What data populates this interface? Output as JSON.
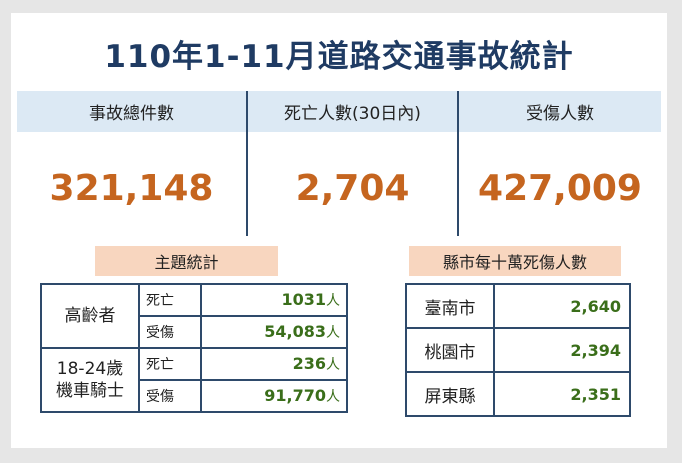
{
  "title": "110年1-11月道路交通事故統計",
  "summary": [
    {
      "label": "事故總件數",
      "value": "321,148"
    },
    {
      "label": "死亡人數(30日內)",
      "value": "2,704"
    },
    {
      "label": "受傷人數",
      "value": "427,009"
    }
  ],
  "theme_stats": {
    "heading": "主題統計",
    "groups": [
      {
        "name": "高齡者",
        "rows": [
          {
            "label": "死亡",
            "value": "1031",
            "unit": "人"
          },
          {
            "label": "受傷",
            "value": "54,083",
            "unit": "人"
          }
        ]
      },
      {
        "name_line1": "18-24歲",
        "name_line2": "機車騎士",
        "rows": [
          {
            "label": "死亡",
            "value": "236",
            "unit": "人"
          },
          {
            "label": "受傷",
            "value": "91,770",
            "unit": "人"
          }
        ]
      }
    ]
  },
  "city_stats": {
    "heading": "縣市每十萬死傷人數",
    "rows": [
      {
        "city": "臺南市",
        "value": "2,640"
      },
      {
        "city": "桃園市",
        "value": "2,394"
      },
      {
        "city": "屏東縣",
        "value": "2,351"
      }
    ]
  },
  "colors": {
    "title": "#1f3b63",
    "headline_numbers": "#c5651f",
    "table_numbers": "#3a6e1a",
    "header_bg": "#dce9f4",
    "badge_bg": "#f8d6bf",
    "border": "#2e4a6b"
  }
}
